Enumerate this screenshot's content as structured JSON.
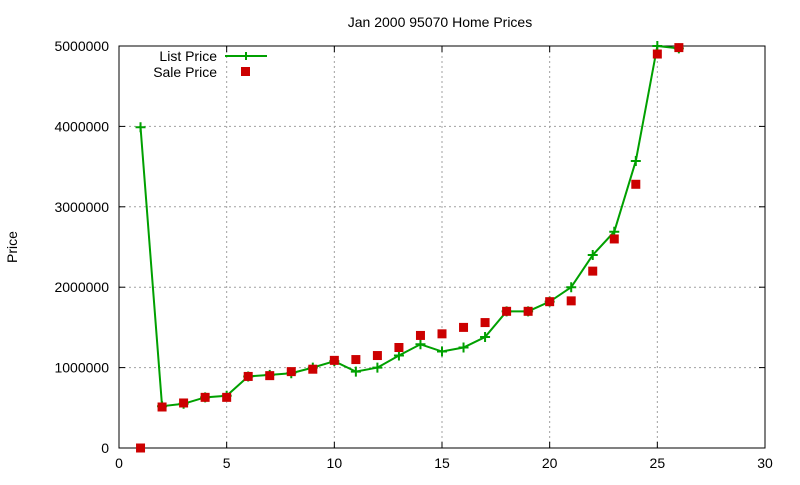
{
  "chart_data": {
    "type": "line",
    "title": "Jan 2000 95070 Home Prices",
    "xlabel": "",
    "ylabel": "Price",
    "xlim": [
      0,
      30
    ],
    "ylim": [
      0,
      5000000
    ],
    "xticks": [
      "0",
      "5",
      "10",
      "15",
      "20",
      "25",
      "30"
    ],
    "yticks": [
      "0",
      "1000000",
      "2000000",
      "3000000",
      "4000000",
      "5000000"
    ],
    "grid": true,
    "legend": "top-left",
    "x": [
      1,
      2,
      3,
      4,
      5,
      6,
      7,
      8,
      9,
      10,
      11,
      12,
      13,
      14,
      15,
      16,
      17,
      18,
      19,
      20,
      21,
      22,
      23,
      24,
      25,
      26
    ],
    "series": [
      {
        "name": "List Price",
        "style": "lines+crosses",
        "color": "#00a000",
        "values": [
          3990000,
          520000,
          550000,
          630000,
          650000,
          890000,
          910000,
          930000,
          1000000,
          1080000,
          950000,
          1000000,
          1150000,
          1290000,
          1200000,
          1250000,
          1380000,
          1700000,
          1700000,
          1820000,
          2000000,
          2400000,
          2690000,
          3570000,
          5000000,
          4970000
        ]
      },
      {
        "name": "Sale Price",
        "style": "squares",
        "color": "#cc0000",
        "values": [
          0,
          510000,
          560000,
          630000,
          630000,
          890000,
          900000,
          950000,
          980000,
          1090000,
          1100000,
          1150000,
          1250000,
          1400000,
          1420000,
          1500000,
          1560000,
          1700000,
          1700000,
          1820000,
          1830000,
          2200000,
          2600000,
          3280000,
          4900000,
          4980000
        ]
      }
    ]
  }
}
